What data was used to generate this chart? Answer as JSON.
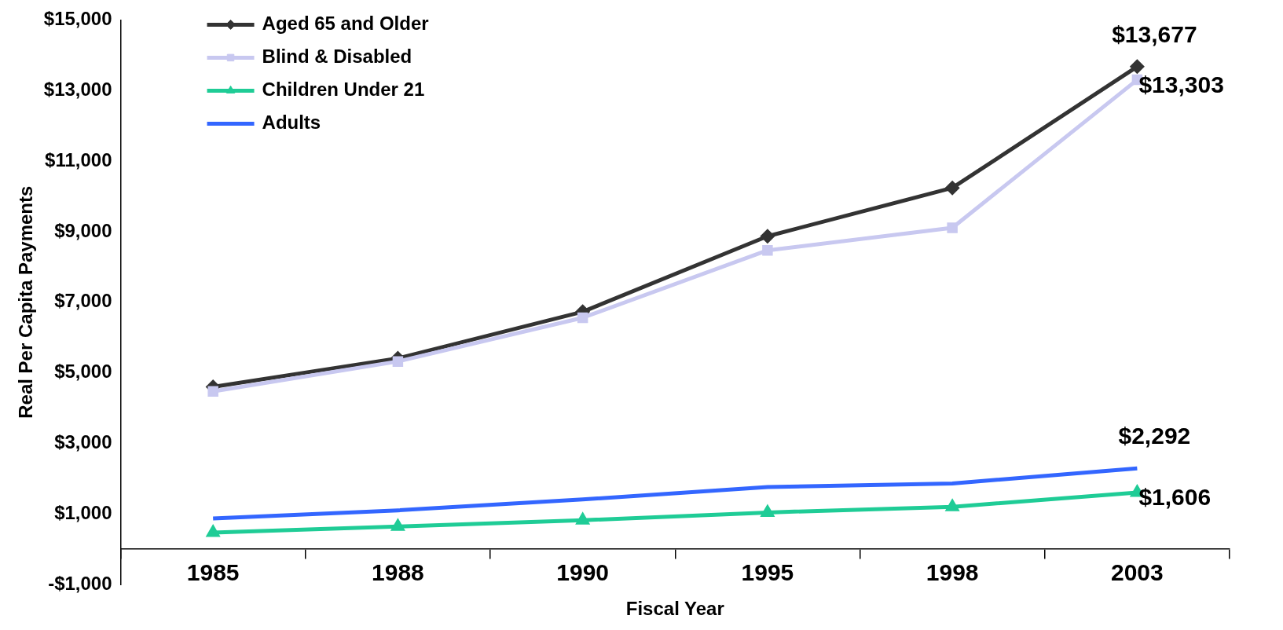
{
  "chart_data": {
    "type": "line",
    "xlabel": "Fiscal Year",
    "ylabel": "Real Per Capita Payments",
    "categories": [
      "1985",
      "1988",
      "1990",
      "1995",
      "1998",
      "2003"
    ],
    "series": [
      {
        "name": "Aged 65 and Older",
        "color": "#333333",
        "marker": "diamond",
        "values": [
          4600,
          5410,
          6730,
          8870,
          10240,
          13677
        ],
        "value_labels": [
          null,
          null,
          null,
          null,
          null,
          "$13,677"
        ]
      },
      {
        "name": "Blind & Disabled",
        "color": "#c8c8f0",
        "marker": "square",
        "values": [
          4470,
          5320,
          6560,
          8470,
          9110,
          13303
        ],
        "value_labels": [
          null,
          null,
          null,
          null,
          null,
          "$13,303"
        ]
      },
      {
        "name": "Children Under 21",
        "color": "#1fcc96",
        "marker": "triangle",
        "values": [
          470,
          640,
          820,
          1040,
          1200,
          1606
        ],
        "value_labels": [
          null,
          null,
          null,
          null,
          null,
          "$1,606"
        ]
      },
      {
        "name": "Adults",
        "color": "#3366ff",
        "marker": "none",
        "values": [
          870,
          1100,
          1410,
          1760,
          1860,
          2292
        ],
        "value_labels": [
          null,
          null,
          null,
          null,
          null,
          "$2,292"
        ]
      }
    ],
    "ylim": [
      -1000,
      15000
    ],
    "yticks": [
      {
        "value": -1000,
        "label": "-$1,000"
      },
      {
        "value": 1000,
        "label": "$1,000"
      },
      {
        "value": 3000,
        "label": "$3,000"
      },
      {
        "value": 5000,
        "label": "$5,000"
      },
      {
        "value": 7000,
        "label": "$7,000"
      },
      {
        "value": 9000,
        "label": "$9,000"
      },
      {
        "value": 11000,
        "label": "$11,000"
      },
      {
        "value": 13000,
        "label": "$13,000"
      },
      {
        "value": 15000,
        "label": "$15,000"
      }
    ],
    "grid": false,
    "legend": "top left"
  }
}
